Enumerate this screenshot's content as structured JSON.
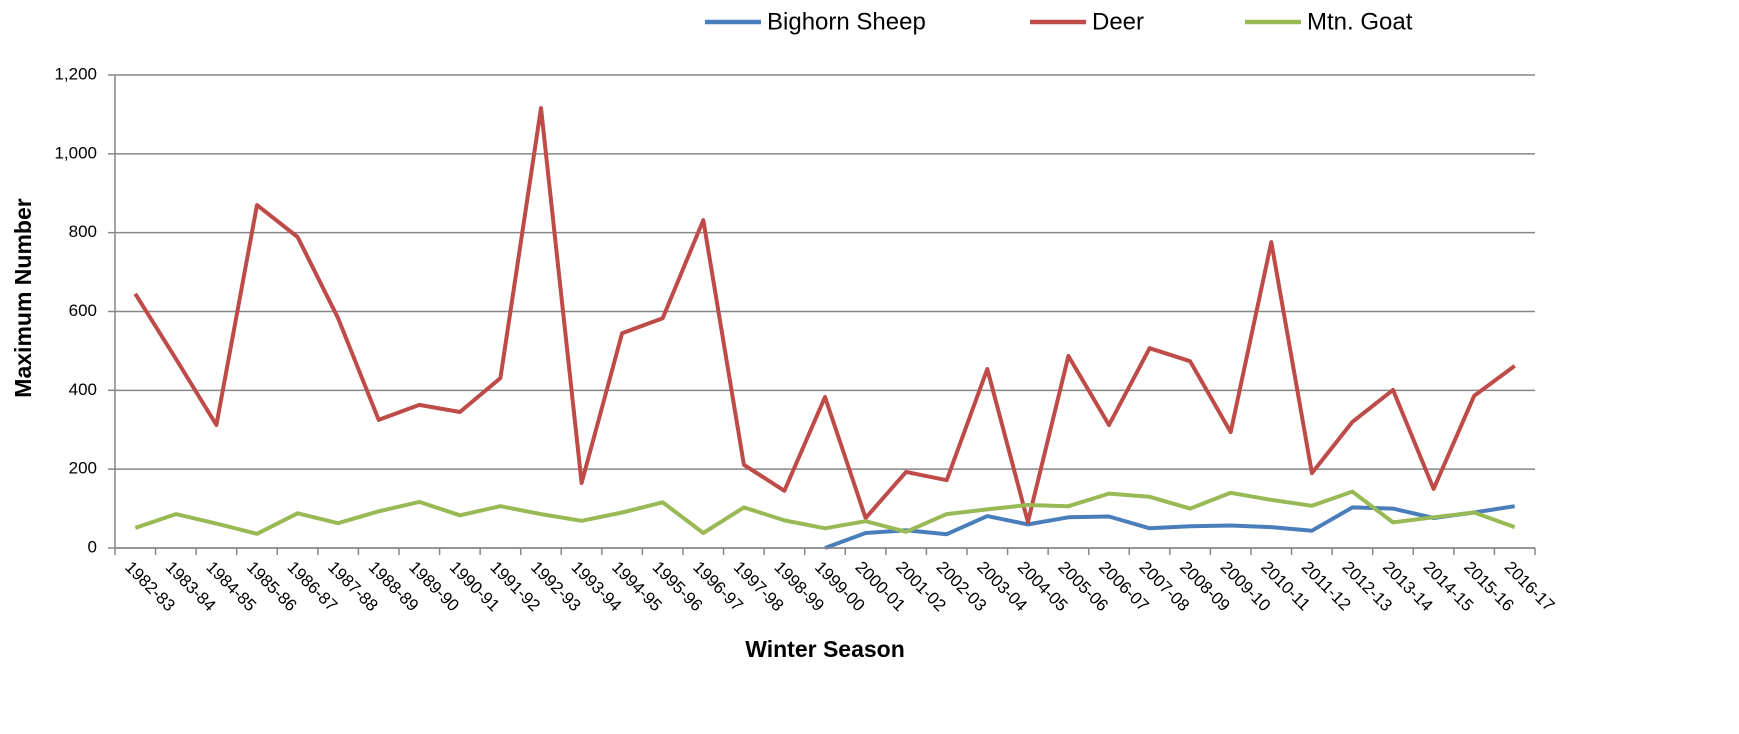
{
  "chart_data": {
    "type": "line",
    "x_label": "Winter Season",
    "y_label": "Maximum Number",
    "categories": [
      "1982-83",
      "1983-84",
      "1984-85",
      "1985-86",
      "1986-87",
      "1987-88",
      "1988-89",
      "1989-90",
      "1990-91",
      "1991-92",
      "1992-93",
      "1993-94",
      "1994-95",
      "1995-96",
      "1996-97",
      "1997-98",
      "1998-99",
      "1999-00",
      "2000-01",
      "2001-02",
      "2002-03",
      "2003-04",
      "2004-05",
      "2005-06",
      "2006-07",
      "2007-08",
      "2008-09",
      "2009-10",
      "2010-11",
      "2011-12",
      "2012-13",
      "2013-14",
      "2014-15",
      "2015-16",
      "2016-17"
    ],
    "series": [
      {
        "name": "Bighorn Sheep",
        "color": "#4a7ebb",
        "values": [
          null,
          null,
          null,
          null,
          null,
          null,
          null,
          null,
          null,
          null,
          null,
          null,
          null,
          null,
          null,
          null,
          null,
          0,
          38,
          45,
          35,
          81,
          60,
          78,
          80,
          50,
          55,
          57,
          53,
          44,
          103,
          100,
          76,
          90,
          106
        ]
      },
      {
        "name": "Deer",
        "color": "#be4b48",
        "values": [
          645,
          480,
          312,
          870,
          789,
          583,
          325,
          363,
          345,
          431,
          1116,
          165,
          545,
          583,
          832,
          211,
          145,
          383,
          76,
          193,
          172,
          454,
          66,
          487,
          312,
          507,
          474,
          294,
          776,
          190,
          320,
          401,
          150,
          386,
          462
        ]
      },
      {
        "name": "Mtn. Goat",
        "color": "#98b954",
        "values": [
          51,
          86,
          62,
          36,
          88,
          63,
          93,
          117,
          83,
          106,
          86,
          69,
          90,
          116,
          38,
          103,
          70,
          50,
          68,
          41,
          86,
          98,
          109,
          106,
          138,
          130,
          100,
          140,
          122,
          107,
          143,
          65,
          78,
          90,
          53
        ]
      }
    ],
    "ylim": [
      0,
      1200
    ],
    "yticks": [
      0,
      200,
      400,
      600,
      800,
      {
        "value": 1000,
        "label": "1,000"
      },
      {
        "value": 1200,
        "label": "1,200"
      }
    ],
    "grid": true,
    "legend": "top"
  }
}
